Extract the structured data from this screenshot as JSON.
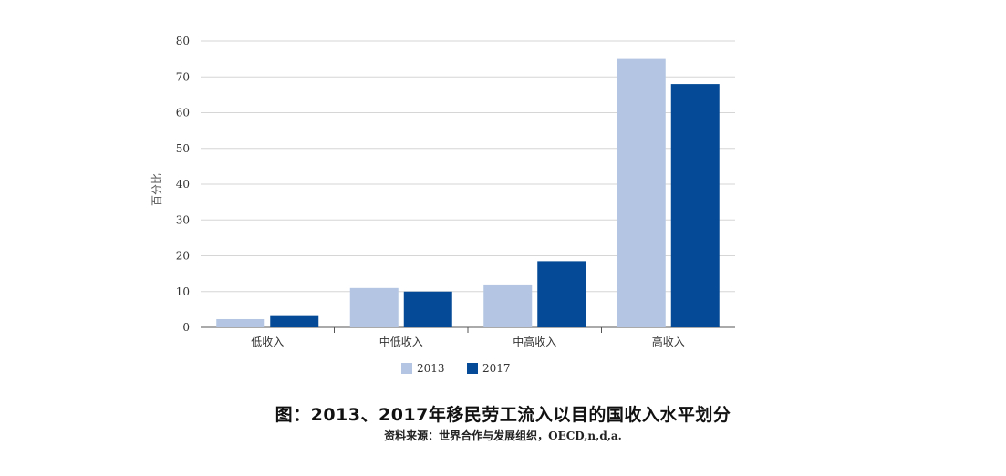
{
  "chart_data": {
    "type": "bar",
    "title": "图：2013、2017年移民劳工流入以目的国收入水平划分",
    "source": "资料来源：世界合作与发展组织，OECD,n,d,a.",
    "xlabel": "",
    "ylabel": "百分比",
    "ylim": [
      0,
      80
    ],
    "yticks": [
      "0",
      "10",
      "20",
      "30",
      "40",
      "50",
      "60",
      "70",
      "80"
    ],
    "grid": true,
    "legend_position": "bottom",
    "categories": [
      "低收入",
      "中低收入",
      "中高收入",
      "高收入"
    ],
    "series": [
      {
        "name": "2013",
        "color": "#b4c5e4",
        "values": [
          2.3,
          11,
          12,
          75
        ]
      },
      {
        "name": "2017",
        "color": "#044a96",
        "values": [
          3.4,
          10,
          18.5,
          68
        ]
      }
    ]
  }
}
